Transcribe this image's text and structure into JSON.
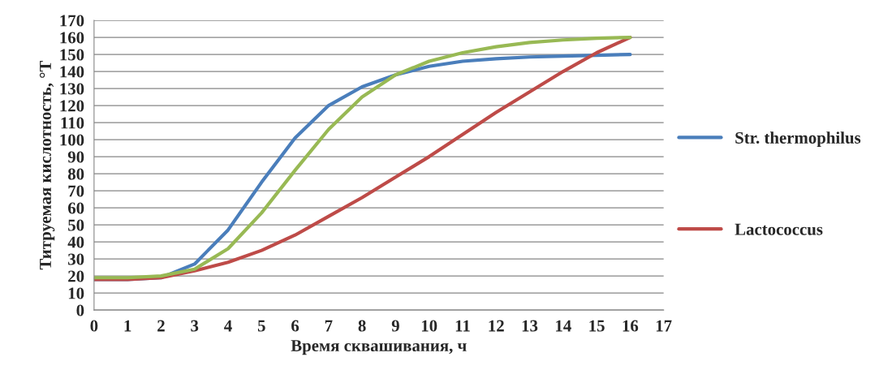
{
  "chart_data": {
    "type": "line",
    "xlabel": "Время сквашивания, ч",
    "ylabel": "Титруемая кислотность, °Т",
    "x": [
      0,
      1,
      2,
      3,
      4,
      5,
      6,
      7,
      8,
      9,
      10,
      11,
      12,
      13,
      14,
      15,
      16
    ],
    "series": [
      {
        "name": "Str. thermophilus",
        "color": "#4a7ebb",
        "values": [
          18,
          18,
          19,
          27,
          47,
          75,
          101,
          120,
          131,
          138,
          143,
          146,
          147.5,
          148.5,
          149,
          149.5,
          150
        ]
      },
      {
        "name": "Lactococcus",
        "color": "#be4b48",
        "values": [
          18,
          18,
          19,
          23,
          28,
          35,
          44,
          55,
          66,
          78,
          90,
          103,
          116,
          128,
          140,
          151,
          160
        ]
      },
      {
        "color": "#98b954",
        "values": [
          19,
          19,
          20,
          24,
          36,
          57,
          82,
          106,
          125,
          138,
          146,
          151,
          154.5,
          157,
          158.5,
          159.5,
          160
        ]
      }
    ],
    "xlim": [
      0,
      17
    ],
    "xticks": [
      0,
      1,
      2,
      3,
      4,
      5,
      6,
      7,
      8,
      9,
      10,
      11,
      12,
      13,
      14,
      15,
      16,
      17
    ],
    "ylim": [
      0,
      170
    ],
    "yticks": [
      0,
      10,
      20,
      30,
      40,
      50,
      60,
      70,
      80,
      90,
      100,
      110,
      120,
      130,
      140,
      150,
      160,
      170
    ],
    "grid": "y",
    "legend": "right",
    "marker": "none",
    "line_style": "solid"
  }
}
